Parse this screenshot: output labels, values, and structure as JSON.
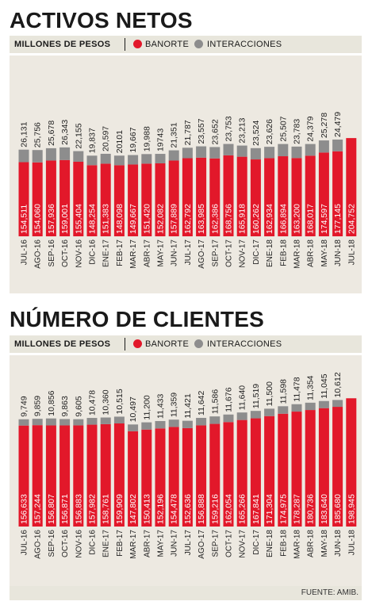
{
  "charts": {
    "activos": {
      "title": "ACTIVOS NETOS",
      "unit_label": "MILLONES DE PESOS",
      "legend": {
        "banorte": "BANORTE",
        "interacciones": "INTERACCIONES"
      }
    },
    "clientes": {
      "title": "NÚMERO DE CLIENTES",
      "unit_label": "MILLONES DE PESOS",
      "legend": {
        "banorte": "BANORTE",
        "interacciones": "INTERACCIONES"
      }
    }
  },
  "colors": {
    "banorte": "#e2182a",
    "interacciones": "#8d8d8d",
    "panel": "#ede9e1"
  },
  "footer": {
    "source": "FUENTE: AMIB."
  },
  "chart_data": [
    {
      "type": "bar",
      "stacked": true,
      "title": "ACTIVOS NETOS",
      "subtitle": "MILLONES DE PESOS",
      "categories": [
        "JUL-16",
        "AGO-16",
        "SEP-16",
        "OCT-16",
        "NOV-16",
        "DIC-16",
        "ENE-17",
        "FEB-17",
        "MAR-17",
        "ABR-17",
        "MAY-17",
        "JUN-17",
        "JUL-17",
        "AGO-17",
        "SEP-17",
        "OCT-17",
        "NOV-17",
        "DIC-17",
        "ENE-18",
        "FEB-18",
        "MAR-18",
        "ABR-18",
        "MAY-18",
        "JUN-18",
        "JUL-18"
      ],
      "series": [
        {
          "name": "BANORTE",
          "values": [
            154511,
            154060,
            157936,
            159001,
            155404,
            148254,
            151383,
            148098,
            149667,
            151420,
            152082,
            157889,
            162792,
            163985,
            162386,
            168756,
            165918,
            160262,
            162934,
            166894,
            163200,
            168017,
            174597,
            177145,
            204752
          ],
          "labels": [
            "154,511",
            "154,060",
            "157,936",
            "159,001",
            "155,404",
            "148,254",
            "151,383",
            "148,098",
            "149,667",
            "151,420",
            "152,082",
            "157,889",
            "162,792",
            "163,985",
            "162,386",
            "168,756",
            "165,918",
            "160,262",
            "162,934",
            "166,894",
            "163,200",
            "168,017",
            "174,597",
            "177,145",
            "204,752"
          ]
        },
        {
          "name": "INTERACCIONES",
          "values": [
            26131,
            25756,
            25678,
            26343,
            22155,
            19837,
            20597,
            20101,
            19667,
            19988,
            19743,
            21351,
            21787,
            23557,
            23652,
            23753,
            23213,
            23524,
            23626,
            25507,
            23783,
            24379,
            25278,
            24479,
            null
          ],
          "labels": [
            "26,131",
            "25,756",
            "25,678",
            "26,343",
            "22,155",
            "19,837",
            "20,597",
            "20101",
            "19,667",
            "19,988",
            "19743",
            "21,351",
            "21,787",
            "23,557",
            "23,652",
            "23,753",
            "23,213",
            "23,524",
            "23,626",
            "25,507",
            "23,783",
            "24,379",
            "25,278",
            "24,479",
            ""
          ]
        }
      ],
      "grid": false,
      "legend_position": "top"
    },
    {
      "type": "bar",
      "stacked": true,
      "title": "NÚMERO DE CLIENTES",
      "subtitle": "MILLONES DE PESOS",
      "categories": [
        "JUL-16",
        "AGO-16",
        "SEP-16",
        "OCT-16",
        "NOV-16",
        "DIC-16",
        "ENE-17",
        "FEB-17",
        "MAR-17",
        "ABR-17",
        "MAY-17",
        "JUN-17",
        "JUL-17",
        "AGO-17",
        "SEP-17",
        "OCT-17",
        "NOV-17",
        "DIC-17",
        "ENE-18",
        "FEB-18",
        "MAR-18",
        "ABR-18",
        "MAY-18",
        "JUN-18",
        "JUL-18"
      ],
      "series": [
        {
          "name": "BANORTE",
          "values": [
            156633,
            157244,
            156807,
            156871,
            156883,
            157982,
            158761,
            159909,
            147802,
            150413,
            152196,
            154478,
            152636,
            156888,
            159216,
            162054,
            165266,
            167841,
            171304,
            174975,
            178287,
            180736,
            183640,
            185680,
            198945
          ],
          "labels": [
            "156,633",
            "157,244",
            "156,807",
            "156,871",
            "156,883",
            "157,982",
            "158,761",
            "159,909",
            "147,802",
            "150,413",
            "152,196",
            "154,478",
            "152,636",
            "156,888",
            "159,216",
            "162,054",
            "165,266",
            "167,841",
            "171,304",
            "174,975",
            "178,287",
            "180,736",
            "183,640",
            "185,680",
            "198,945"
          ]
        },
        {
          "name": "INTERACCIONES",
          "values": [
            9749,
            9859,
            10856,
            9863,
            9605,
            10478,
            10360,
            10515,
            10497,
            11200,
            11433,
            11359,
            11421,
            11642,
            11586,
            11676,
            11640,
            11519,
            11500,
            11598,
            11478,
            11354,
            11045,
            10612,
            null
          ],
          "labels": [
            "9,749",
            "9,859",
            "10,856",
            "9,863",
            "9,605",
            "10,478",
            "10,360",
            "10,515",
            "10,497",
            "11,200",
            "11,433",
            "11,359",
            "11,421",
            "11,642",
            "11,586",
            "11,676",
            "11,640",
            "11,519",
            "11,500",
            "11,598",
            "11,478",
            "11,354",
            "11,045",
            "10,612",
            ""
          ]
        }
      ],
      "grid": false,
      "legend_position": "top"
    }
  ]
}
